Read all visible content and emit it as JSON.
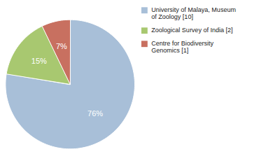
{
  "chart_data": {
    "type": "pie",
    "categories": [
      "University of Malaya, Museum\nof Zoology [10]",
      "Zoological Survey of India [2]",
      "Centre for Biodiversity\nGenomics [1]"
    ],
    "values": [
      76,
      15,
      7
    ],
    "value_labels": [
      "76%",
      "15%",
      "7%"
    ],
    "colors": [
      "#a8bfd8",
      "#a8c870",
      "#c87060"
    ],
    "data_labels": true,
    "legend": "right"
  }
}
